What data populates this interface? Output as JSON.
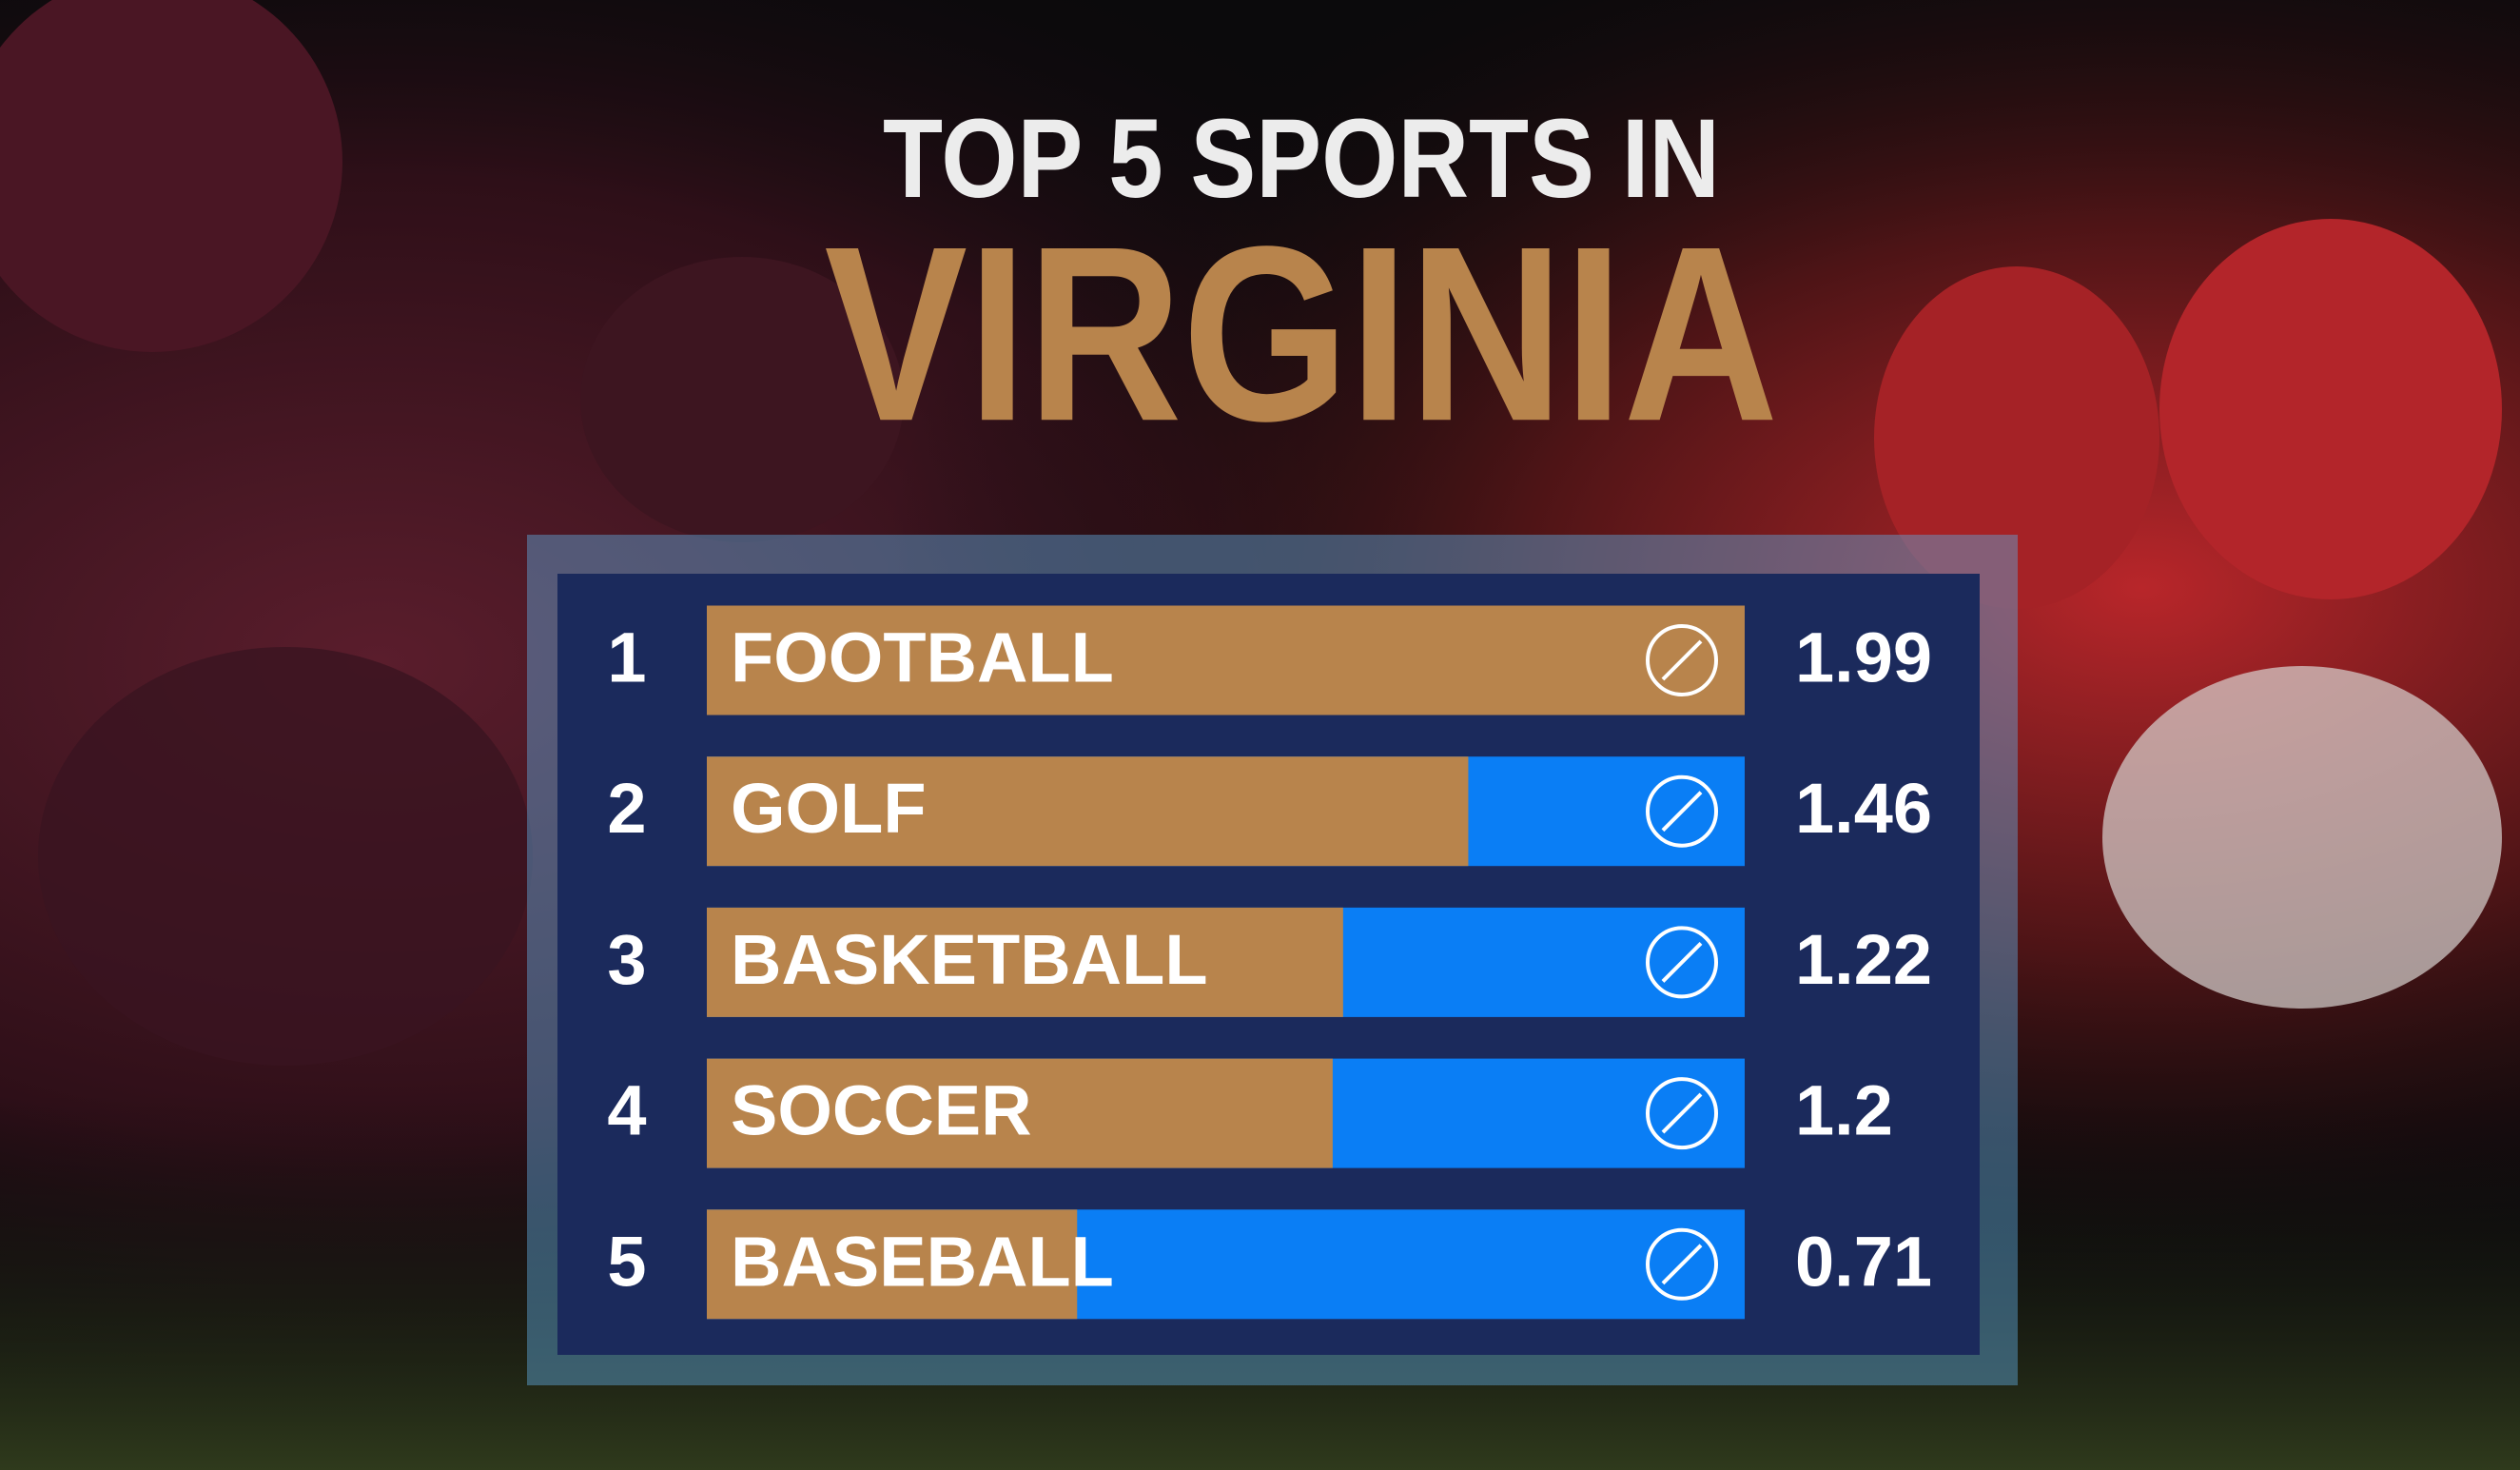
{
  "chart_data": {
    "type": "bar",
    "title": "TOP 5 SPORTS IN",
    "subtitle": "VIRGINIA",
    "ranks": [
      1,
      2,
      3,
      4,
      5
    ],
    "categories": [
      "FOOTBALL",
      "GOLF",
      "BASKETBALL",
      "SOCCER",
      "BASEBALL"
    ],
    "values": [
      1.99,
      1.46,
      1.22,
      1.2,
      0.71
    ],
    "xlim": [
      0,
      1.99
    ],
    "color": "#b8844c",
    "track_color": "#0a7ef5",
    "panel_color": "#1b2a5c"
  }
}
